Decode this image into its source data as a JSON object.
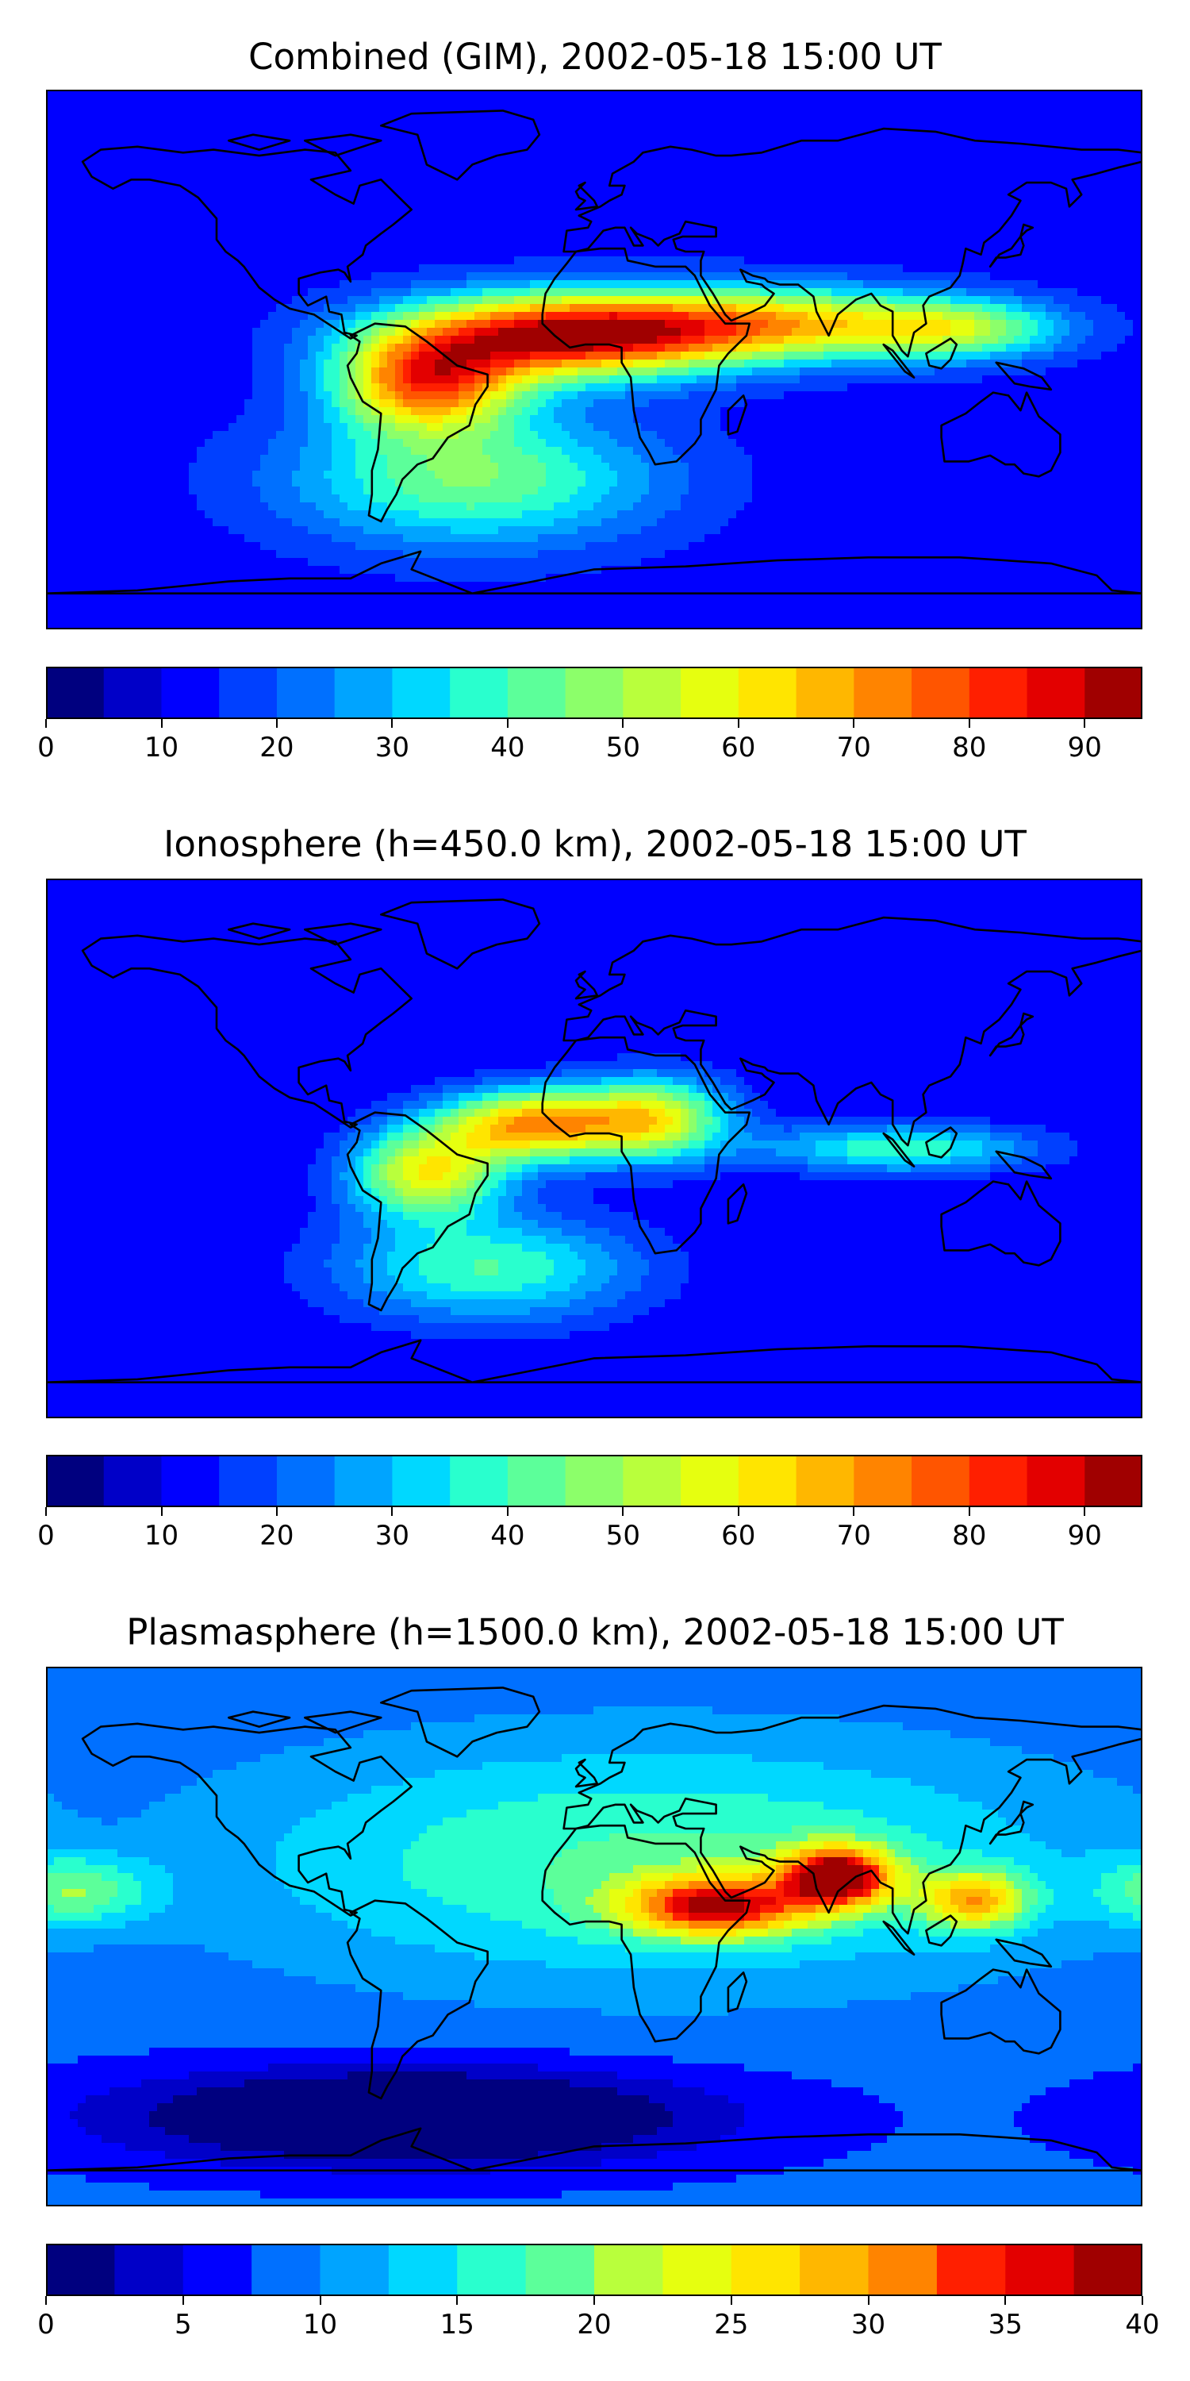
{
  "panels": [
    {
      "title": "Combined (GIM), 2002-05-18 15:00 UT",
      "scale": {
        "min": 0,
        "max": 95,
        "step": 5
      },
      "ticks": [
        "0",
        "10",
        "20",
        "30",
        "40",
        "50",
        "60",
        "70",
        "80",
        "90"
      ],
      "tick_values": [
        0,
        10,
        20,
        30,
        40,
        50,
        60,
        70,
        80,
        90
      ],
      "background_level": 12,
      "field": [
        {
          "lon": -10,
          "lat": 8,
          "level": 88,
          "spread_lon": 55,
          "spread_lat": 14
        },
        {
          "lon": -55,
          "lat": -8,
          "level": 72,
          "spread_lon": 30,
          "spread_lat": 16
        },
        {
          "lon": 60,
          "lat": 12,
          "level": 58,
          "spread_lon": 55,
          "spread_lat": 12
        },
        {
          "lon": -40,
          "lat": -40,
          "level": 45,
          "spread_lon": 60,
          "spread_lat": 22
        },
        {
          "lon": 120,
          "lat": 10,
          "level": 45,
          "spread_lon": 35,
          "spread_lat": 10
        }
      ]
    },
    {
      "title": "Ionosphere  (h=450.0 km), 2002-05-18 15:00 UT",
      "scale": {
        "min": 0,
        "max": 95,
        "step": 5
      },
      "ticks": [
        "0",
        "10",
        "20",
        "30",
        "40",
        "50",
        "60",
        "70",
        "80",
        "90"
      ],
      "tick_values": [
        0,
        10,
        20,
        30,
        40,
        50,
        60,
        70,
        80,
        90
      ],
      "background_level": 10,
      "field": [
        {
          "lon": -20,
          "lat": 8,
          "level": 68,
          "spread_lon": 30,
          "spread_lat": 12
        },
        {
          "lon": -55,
          "lat": -8,
          "level": 58,
          "spread_lon": 25,
          "spread_lat": 15
        },
        {
          "lon": 20,
          "lat": 10,
          "level": 55,
          "spread_lon": 25,
          "spread_lat": 14
        },
        {
          "lon": -35,
          "lat": -40,
          "level": 40,
          "spread_lon": 50,
          "spread_lat": 18
        },
        {
          "lon": 100,
          "lat": 0,
          "level": 40,
          "spread_lon": 45,
          "spread_lat": 8
        }
      ]
    },
    {
      "title": "Plasmasphere (h=1500.0 km), 2002-05-18 15:00 UT",
      "scale": {
        "min": 0,
        "max": 40,
        "step": 2.5
      },
      "ticks": [
        "0",
        "5",
        "10",
        "15",
        "20",
        "25",
        "30",
        "35",
        "40"
      ],
      "tick_values": [
        0,
        5,
        10,
        15,
        20,
        25,
        30,
        35,
        40
      ],
      "background_level": 8,
      "field": [
        {
          "lon": 80,
          "lat": 20,
          "level": 36,
          "spread_lon": 18,
          "spread_lat": 10
        },
        {
          "lon": 40,
          "lat": 10,
          "level": 31,
          "spread_lon": 30,
          "spread_lat": 10
        },
        {
          "lon": 125,
          "lat": 12,
          "level": 25,
          "spread_lon": 18,
          "spread_lat": 10
        },
        {
          "lon": 20,
          "lat": 25,
          "level": 18,
          "spread_lon": 140,
          "spread_lat": 40
        },
        {
          "lon": -170,
          "lat": 15,
          "level": 18,
          "spread_lon": 25,
          "spread_lat": 12
        },
        {
          "lon": -60,
          "lat": -60,
          "level": -6,
          "spread_lon": 90,
          "spread_lat": 15
        }
      ]
    }
  ],
  "colormap": [
    "#00007f",
    "#0000c8",
    "#0000ff",
    "#0040ff",
    "#0070ff",
    "#00a4ff",
    "#00d8ff",
    "#29ffce",
    "#5cff9a",
    "#8cff6a",
    "#b9ff3c",
    "#e6ff0f",
    "#ffe500",
    "#ffb700",
    "#ff8400",
    "#ff5500",
    "#ff1f00",
    "#e30000",
    "#a00000"
  ]
}
